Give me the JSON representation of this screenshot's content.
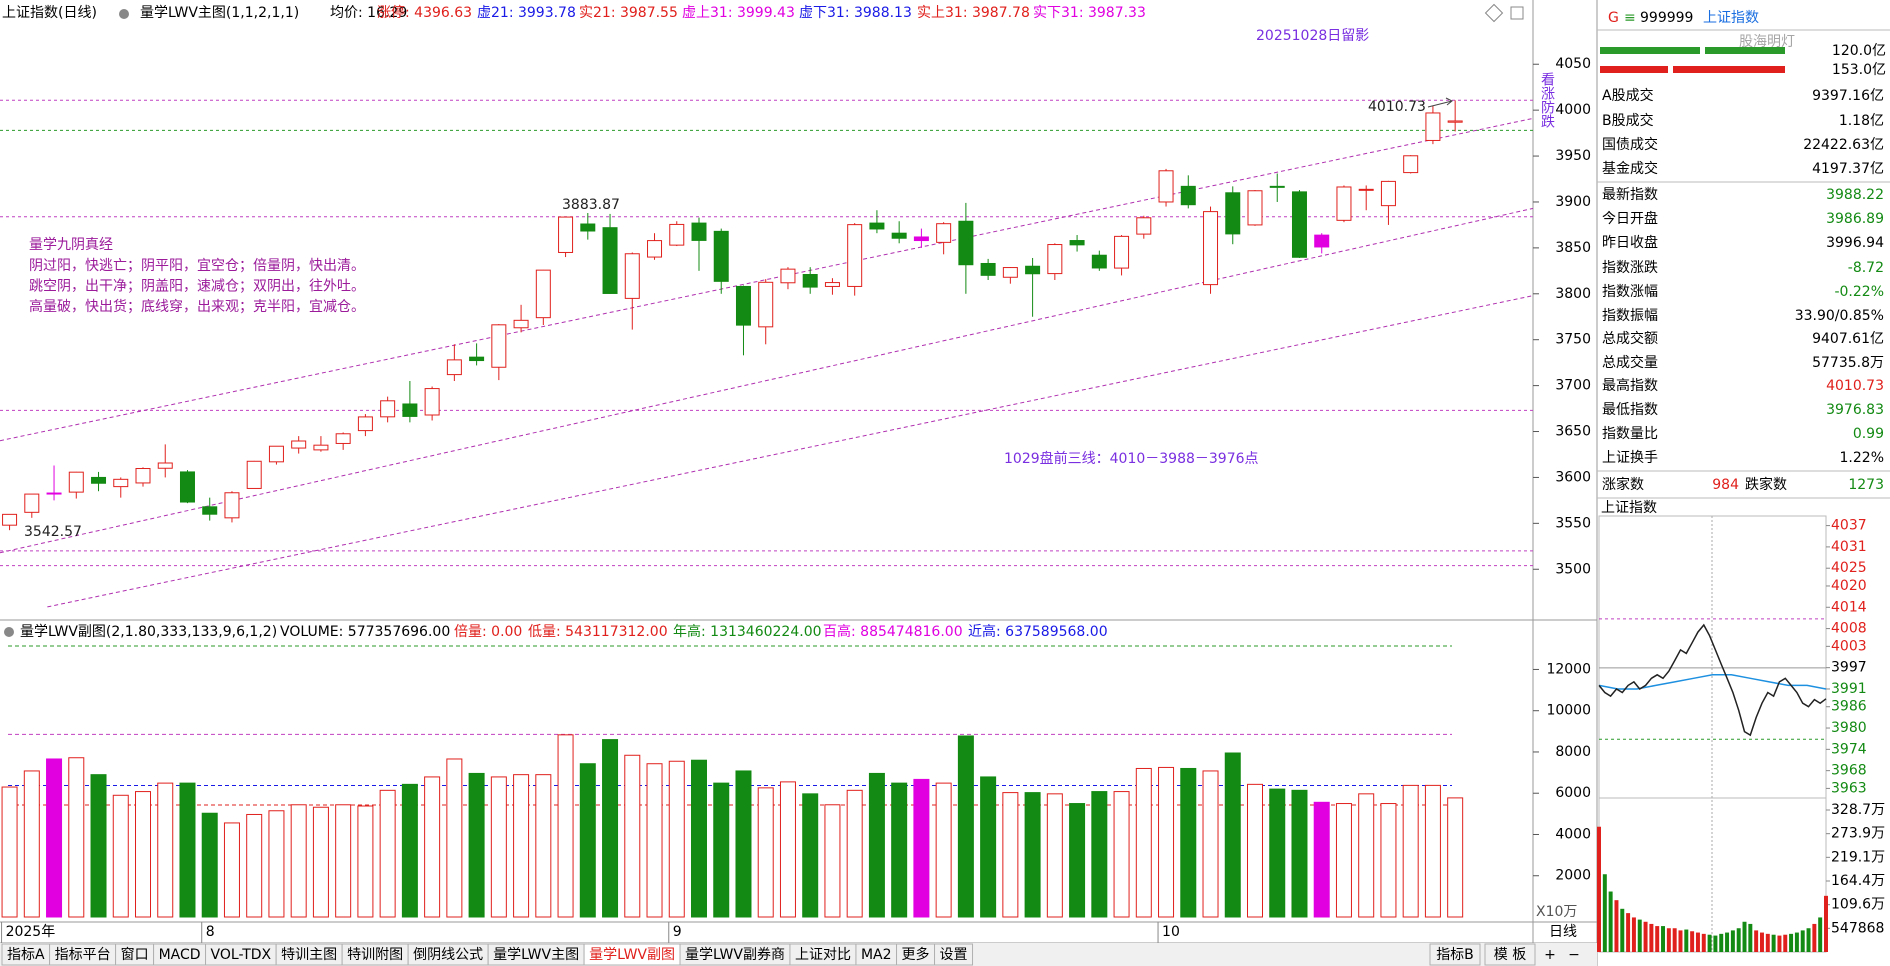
{
  "window": {
    "g": "G",
    "menu": "≡",
    "code": "999999",
    "name": "上证指数",
    "watermark": "股海明灯",
    "amount_top": "120.0亿",
    "amount_bottom": "153.0亿",
    "period": "日线",
    "zoom": [
      "+",
      "−"
    ]
  },
  "chart_data": [
    {
      "type": "candlestick",
      "header": [
        {
          "text": "上证指数(日线)",
          "color": "#000000"
        },
        {
          "text": "量学LWV主图(1,1,2,1,1)",
          "color": "#000000"
        },
        {
          "text": "均价: 16.29",
          "color": "#000000"
        },
        {
          "text": "涨停: 4396.63",
          "color": "#e0201c"
        },
        {
          "text": "虚21: 3993.78",
          "color": "#1a1ae6"
        },
        {
          "text": "实21: 3987.55",
          "color": "#e0201c"
        },
        {
          "text": "虚上31: 3999.43",
          "color": "#e000e0"
        },
        {
          "text": "虚下31: 3988.13",
          "color": "#1a1ae6"
        },
        {
          "text": "实上31: 3987.78",
          "color": "#e0201c"
        },
        {
          "text": "实下31: 3987.33",
          "color": "#e000e0"
        }
      ],
      "open": [
        3548,
        3562,
        3583,
        3584,
        3600,
        3590,
        3594,
        3610,
        3606,
        3568,
        3556,
        3588,
        3617,
        3632,
        3630,
        3637,
        3651,
        3666,
        3680,
        3668,
        3712,
        3731,
        3720,
        3763,
        3774,
        3845,
        3876,
        3872,
        3795,
        3840,
        3853,
        3877,
        3868,
        3808,
        3764,
        3812,
        3821,
        3808,
        3808,
        3877,
        3866,
        3858,
        3856,
        3879,
        3833,
        3818,
        3830,
        3822,
        3858,
        3842,
        3828,
        3865,
        3900,
        3917,
        3810,
        3910,
        3875,
        3917,
        3911,
        3851,
        3880,
        3913,
        3896,
        3932,
        3967,
        3986.89
      ],
      "high": [
        3560,
        3582,
        3613,
        3606,
        3606,
        3600,
        3611,
        3636,
        3608,
        3578,
        3585,
        3618,
        3634,
        3645,
        3645,
        3649,
        3669,
        3688,
        3705,
        3699,
        3745,
        3746,
        3767,
        3788,
        3826,
        3883.87,
        3888,
        3887,
        3845,
        3866,
        3879,
        3883,
        3871,
        3809,
        3816,
        3829,
        3829,
        3817,
        3877,
        3891,
        3879,
        3871,
        3878,
        3899,
        3838,
        3829,
        3839,
        3855,
        3864,
        3847,
        3864,
        3885,
        3936,
        3929,
        3895,
        3917,
        3913,
        3931,
        3913,
        3866,
        3918,
        3918,
        3923,
        3951,
        4005,
        4010.73
      ],
      "low": [
        3542.57,
        3556,
        3575,
        3577,
        3585,
        3578,
        3590,
        3600,
        3572,
        3553,
        3551,
        3588,
        3614,
        3626,
        3628,
        3630,
        3645,
        3660,
        3660,
        3662,
        3705,
        3722,
        3706,
        3758,
        3766,
        3840,
        3859,
        3800,
        3761,
        3837,
        3852,
        3825,
        3800,
        3733,
        3745,
        3805,
        3800,
        3799,
        3798,
        3866,
        3855,
        3850,
        3843,
        3800,
        3815,
        3811,
        3775,
        3815,
        3846,
        3825,
        3820,
        3860,
        3895,
        3893,
        3800,
        3854,
        3874,
        3900,
        3839,
        3844,
        3878,
        3891,
        3875,
        3931,
        3963,
        3976.83
      ],
      "close": [
        3559.79,
        3581.86,
        3582.3,
        3605.73,
        3593.66,
        3597.94,
        3609.71,
        3615.72,
        3573.21,
        3559.95,
        3583.31,
        3617.6,
        3633.99,
        3639.67,
        3635.13,
        3647.55,
        3665.92,
        3683.46,
        3666.44,
        3696.77,
        3728.03,
        3727.29,
        3766.21,
        3771.1,
        3825.76,
        3883.56,
        3868.38,
        3800.35,
        3843.6,
        3857.93,
        3875.53,
        3858.13,
        3813.56,
        3765.88,
        3812.51,
        3826.84,
        3807.29,
        3812.22,
        3875.31,
        3870.6,
        3860.5,
        3861.87,
        3876.34,
        3831.66,
        3820.09,
        3828.58,
        3821.83,
        3853.64,
        3853.3,
        3828.11,
        3862.53,
        3882.78,
        3933.97,
        3897.03,
        3889.5,
        3865.23,
        3912.21,
        3916.23,
        3839.76,
        3863.89,
        3916.33,
        3913.76,
        3922.41,
        3950.31,
        3996.94,
        3988.22
      ],
      "up_color": "#e0201c",
      "down_color": "#138a13",
      "highlight": {
        "color": "#e000e0",
        "indices": [
          2,
          41,
          59
        ]
      },
      "xlim": [
        -0.43,
        68.5
      ],
      "ylim": [
        3448,
        4096
      ],
      "yticks": [
        3500,
        3550,
        3600,
        3650,
        3700,
        3750,
        3800,
        3850,
        3900,
        3950,
        4000,
        4050
      ],
      "xticks": [
        {
          "value": 0,
          "label": "2025年"
        },
        {
          "value": 9,
          "label": "8"
        },
        {
          "value": 30,
          "label": "9"
        },
        {
          "value": 52,
          "label": "10"
        }
      ],
      "ref_lines": [
        {
          "value": 4010.73,
          "color": "#c040c0"
        },
        {
          "value": 3978,
          "color": "#2a9a2a"
        },
        {
          "value": 3883.87,
          "color": "#c040c0"
        },
        {
          "value": 3673,
          "color": "#c040c0"
        },
        {
          "value": 3520,
          "color": "#c040c0"
        },
        {
          "value": 3504,
          "color": "#c040c0"
        }
      ],
      "trend_lines": [
        {
          "x": [
            -0.43,
            68.5
          ],
          "y": [
            3640,
            3991
          ]
        },
        {
          "x": [
            -0.43,
            68.5
          ],
          "y": [
            3518,
            3893
          ]
        },
        {
          "x": [
            1.7,
            68.5
          ],
          "y": [
            3459,
            3798
          ]
        }
      ],
      "trend_color": "#b030b0",
      "marked_prices": [
        4010.73,
        3883.87,
        3542.57
      ],
      "annotations": [
        "20251028日留影",
        "看涨防跌",
        "1029盘前三线：4010－3988－3976点"
      ],
      "notes": {
        "title": "量学九阴真经",
        "lines": [
          "阴过阳，快逃亡；阴平阳，宜空仓；倍量阴，快出清。",
          "跳空阴，出干净；阴盖阳，速减仓；双阴出，往外吐。",
          "高量破，快出货；底线穿，出来观；克半阳，宜减仓。"
        ]
      }
    },
    {
      "type": "bar",
      "header": [
        {
          "text": "量学LWV副图(2,1.80,333,133,9,6,1,2)",
          "color": "#000000"
        },
        {
          "text": "VOLUME: 577357696.00",
          "color": "#000000"
        },
        {
          "text": "倍量: 0.00",
          "color": "#e0201c"
        },
        {
          "text": "低量: 543117312.00",
          "color": "#e0201c"
        },
        {
          "text": "年高: 1313460224.00",
          "color": "#138a13"
        },
        {
          "text": "百高: 885474816.00",
          "color": "#e000e0"
        },
        {
          "text": "近高: 637589568.00",
          "color": "#1a1ae6"
        }
      ],
      "values": [
        6300,
        7080,
        7660,
        7720,
        6900,
        5900,
        6080,
        6490,
        6490,
        5030,
        4560,
        4970,
        5150,
        5440,
        5320,
        5440,
        5380,
        6140,
        6430,
        6790,
        7660,
        6960,
        6790,
        6900,
        6900,
        8830,
        7430,
        8600,
        7840,
        7430,
        7550,
        7600,
        6490,
        7080,
        6260,
        6550,
        5970,
        5440,
        6140,
        6960,
        6490,
        6670,
        6490,
        8775,
        6790,
        6030,
        6030,
        5970,
        5500,
        6080,
        6080,
        7200,
        7250,
        7200,
        7080,
        7950,
        6430,
        6200,
        6140,
        5560,
        5500,
        5970,
        5500,
        6380,
        6380,
        5773.57
      ],
      "ylim": [
        0,
        14300
      ],
      "yticks": [
        2000,
        4000,
        6000,
        8000,
        10000,
        12000
      ],
      "unit_label": "X10万",
      "ref_lines": [
        {
          "value": 13134.6,
          "color": "#2a9a2a"
        },
        {
          "value": 8854.7,
          "color": "#c040c0"
        },
        {
          "value": 6375.9,
          "color": "#1a1ae6"
        },
        {
          "value": 5431.2,
          "color": "#e0201c"
        }
      ]
    },
    {
      "type": "line",
      "title": "上证指数",
      "values": [
        3992,
        3990,
        3989,
        3991,
        3990,
        3992,
        3993,
        3991,
        3992,
        3994,
        3995,
        3994,
        3996,
        3999,
        4002,
        4001,
        4004,
        4007,
        4009,
        4006,
        4002,
        3998,
        3994,
        3990,
        3985,
        3979,
        3978,
        3983,
        3987,
        3990,
        3989,
        3993,
        3994,
        3992,
        3990,
        3987,
        3986,
        3988,
        3987,
        3988.22
      ],
      "average": [
        3992,
        3991,
        3991,
        3992,
        3993,
        3994,
        3995,
        3995,
        3994,
        3993,
        3992,
        3992,
        3991
      ],
      "line_color": "#222222",
      "average_color": "#1e90e0",
      "base": 3996.94,
      "ylim": [
        3960.3,
        4039.7
      ],
      "yticks": [
        4037,
        4031,
        4025,
        4020,
        4014,
        4008,
        4003,
        3997,
        3991,
        3986,
        3980,
        3974,
        3968,
        3963
      ],
      "ref_lines": [
        {
          "value": 4010.73,
          "color": "#c040c0"
        },
        {
          "value": 3976.83,
          "color": "#2a9a2a"
        }
      ],
      "volume": [
        2900000,
        1800000,
        1400000,
        1200000,
        1000000,
        900000,
        800000,
        750000,
        700000,
        650000,
        600000,
        600000,
        550000,
        550000,
        500000,
        520000,
        480000,
        450000,
        420000,
        400000,
        380000,
        420000,
        450000,
        500000,
        550000,
        700000,
        650000,
        500000,
        450000,
        420000,
        400000,
        380000,
        400000,
        420000,
        450000,
        500000,
        550000,
        650000,
        800000,
        1300000
      ],
      "volume_ylim": [
        0,
        3565000
      ],
      "volume_yticks": [
        547868,
        {
          "value": 1095736,
          "label": "109.6万"
        },
        {
          "value": 1643604,
          "label": "164.4万"
        },
        {
          "value": 2191472,
          "label": "219.1万"
        },
        {
          "value": 2739340,
          "label": "273.9万"
        },
        {
          "value": 3287208,
          "label": "328.7万"
        }
      ]
    }
  ],
  "quote_panel": {
    "rows": [
      {
        "label": "A股成交",
        "value": "9397.16亿",
        "color": "#000000"
      },
      {
        "label": "B股成交",
        "value": "1.18亿",
        "color": "#000000"
      },
      {
        "label": "国债成交",
        "value": "22422.63亿",
        "color": "#000000"
      },
      {
        "label": "基金成交",
        "value": "4197.37亿",
        "color": "#000000"
      },
      {
        "label": "最新指数",
        "value": "3988.22",
        "color": "#138a13"
      },
      {
        "label": "今日开盘",
        "value": "3986.89",
        "color": "#138a13"
      },
      {
        "label": "昨日收盘",
        "value": "3996.94",
        "color": "#000000"
      },
      {
        "label": "指数涨跌",
        "value": "-8.72",
        "color": "#138a13"
      },
      {
        "label": "指数涨幅",
        "value": "-0.22%",
        "color": "#138a13"
      },
      {
        "label": "指数振幅",
        "value": "33.90/0.85%",
        "color": "#000000"
      },
      {
        "label": "总成交额",
        "value": "9407.61亿",
        "color": "#000000"
      },
      {
        "label": "总成交量",
        "value": "57735.8万",
        "color": "#000000"
      },
      {
        "label": "最高指数",
        "value": "4010.73",
        "color": "#e0201c"
      },
      {
        "label": "最低指数",
        "value": "3976.83",
        "color": "#138a13"
      },
      {
        "label": "指数量比",
        "value": "0.99",
        "color": "#138a13"
      },
      {
        "label": "上证换手",
        "value": "1.22%",
        "color": "#000000"
      }
    ],
    "up_label": "涨家数",
    "up_count": "984",
    "down_label": "跌家数",
    "down_count": "1273"
  },
  "tabs": {
    "items": [
      "指标A",
      "指标平台",
      "窗口",
      "MACD",
      "VOL-TDX",
      "特训主图",
      "特训附图",
      "倒阴线公式",
      "量学LWV主图",
      "量学LWV副图",
      "量学LWV副券商",
      "上证对比",
      "MA2",
      "更多",
      "设置"
    ],
    "active": 9,
    "active_color": "#e0201c",
    "right": [
      "指标B",
      "模 板"
    ]
  }
}
